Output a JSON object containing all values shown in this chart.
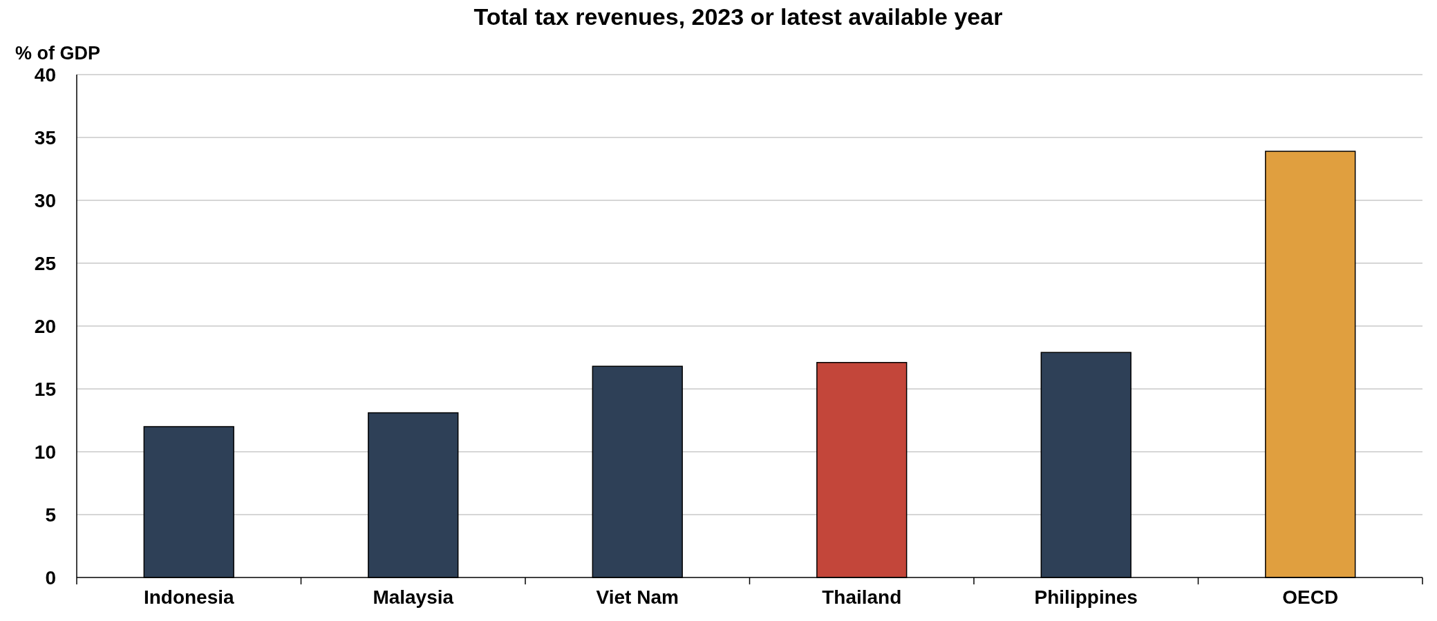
{
  "chart_data": {
    "type": "bar",
    "title": "Total tax revenues, 2023 or latest available year",
    "ylabel": "% of GDP",
    "categories": [
      "Indonesia",
      "Malaysia",
      "Viet Nam",
      "Thailand",
      "Philippines",
      "OECD"
    ],
    "values": [
      12.0,
      13.1,
      16.8,
      17.1,
      17.9,
      33.9
    ],
    "colors": [
      "#2e4057",
      "#2e4057",
      "#2e4057",
      "#c3463a",
      "#2e4057",
      "#e09f3f"
    ],
    "ylim": [
      0,
      40
    ],
    "yticks": [
      0,
      5,
      10,
      15,
      20,
      25,
      30,
      35,
      40
    ],
    "grid": "y"
  }
}
